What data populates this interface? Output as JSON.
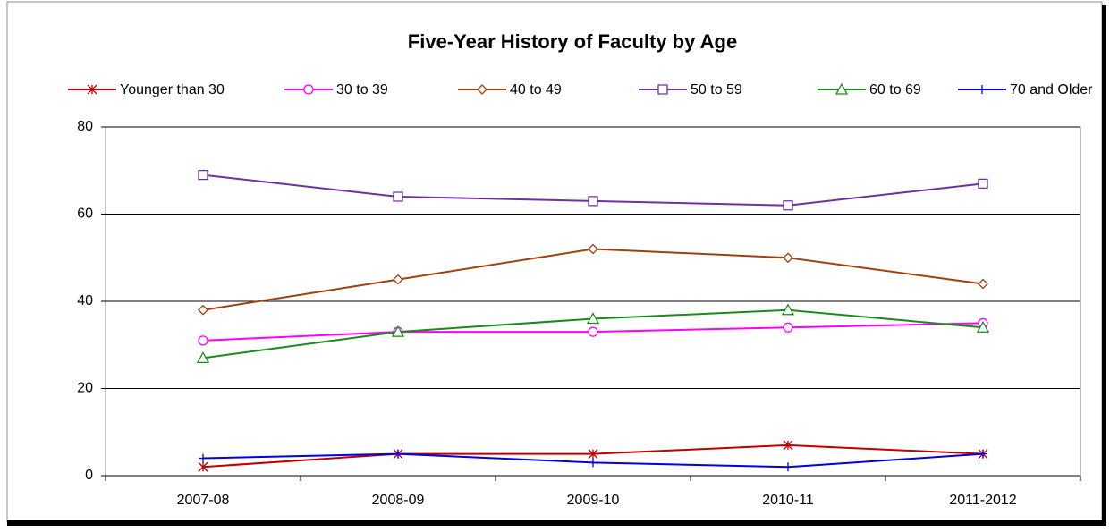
{
  "chart_data": {
    "type": "line",
    "title": "Five-Year History of Faculty by Age",
    "categories": [
      "2007-08",
      "2008-09",
      "2009-10",
      "2010-11",
      "2011-2012"
    ],
    "series": [
      {
        "name": "Younger than 30",
        "color": "#c00000",
        "marker": "asterisk",
        "values": [
          2,
          5,
          5,
          7,
          5
        ]
      },
      {
        "name": "30 to 39",
        "color": "#ff00ff",
        "marker": "circle",
        "values": [
          31,
          33,
          33,
          34,
          35
        ]
      },
      {
        "name": "40 to 49",
        "color": "#a0410d",
        "marker": "diamond",
        "values": [
          38,
          45,
          52,
          50,
          44
        ]
      },
      {
        "name": "50 to 59",
        "color": "#7030a0",
        "marker": "square",
        "values": [
          69,
          64,
          63,
          62,
          67
        ]
      },
      {
        "name": "60 to 69",
        "color": "#1a8a1a",
        "marker": "triangle",
        "values": [
          27,
          33,
          36,
          38,
          34
        ]
      },
      {
        "name": "70 and Older",
        "color": "#0000e0",
        "marker": "plus",
        "values": [
          4,
          5,
          3,
          2,
          5
        ]
      }
    ],
    "ylim": [
      0,
      80
    ],
    "yticks": [
      0,
      20,
      40,
      60,
      80
    ],
    "grid": true,
    "legend": "top"
  }
}
